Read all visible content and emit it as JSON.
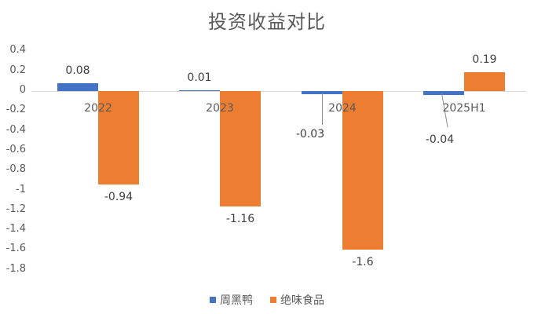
{
  "chart_data": {
    "type": "bar",
    "title": "投资收益对比",
    "xlabel": "",
    "ylabel": "",
    "categories": [
      "2022",
      "2023",
      "2024",
      "2025H1"
    ],
    "series": [
      {
        "name": "周黑鸭",
        "color": "#4472C4",
        "values": [
          0.08,
          0.01,
          -0.03,
          -0.04
        ]
      },
      {
        "name": "绝味食品",
        "color": "#ED7D31",
        "values": [
          -0.94,
          -1.16,
          -1.6,
          0.19
        ]
      }
    ],
    "ylim": [
      -1.8,
      0.4
    ],
    "yticks": [
      "0.4",
      "0.2",
      "0",
      "-0.2",
      "-0.4",
      "-0.6",
      "-0.8",
      "-1",
      "-1.2",
      "-1.4",
      "-1.6",
      "-1.8"
    ],
    "grid": false,
    "legend_position": "bottom",
    "data_labels": {
      "周黑鸭": [
        "0.08",
        "0.01",
        "-0.03",
        "-0.04"
      ],
      "绝味食品": [
        "-0.94",
        "-1.16",
        "-1.6",
        "0.19"
      ]
    }
  },
  "legend": {
    "items": [
      {
        "label": "周黑鸭",
        "color": "#4472C4"
      },
      {
        "label": "绝味食品",
        "color": "#ED7D31"
      }
    ]
  }
}
